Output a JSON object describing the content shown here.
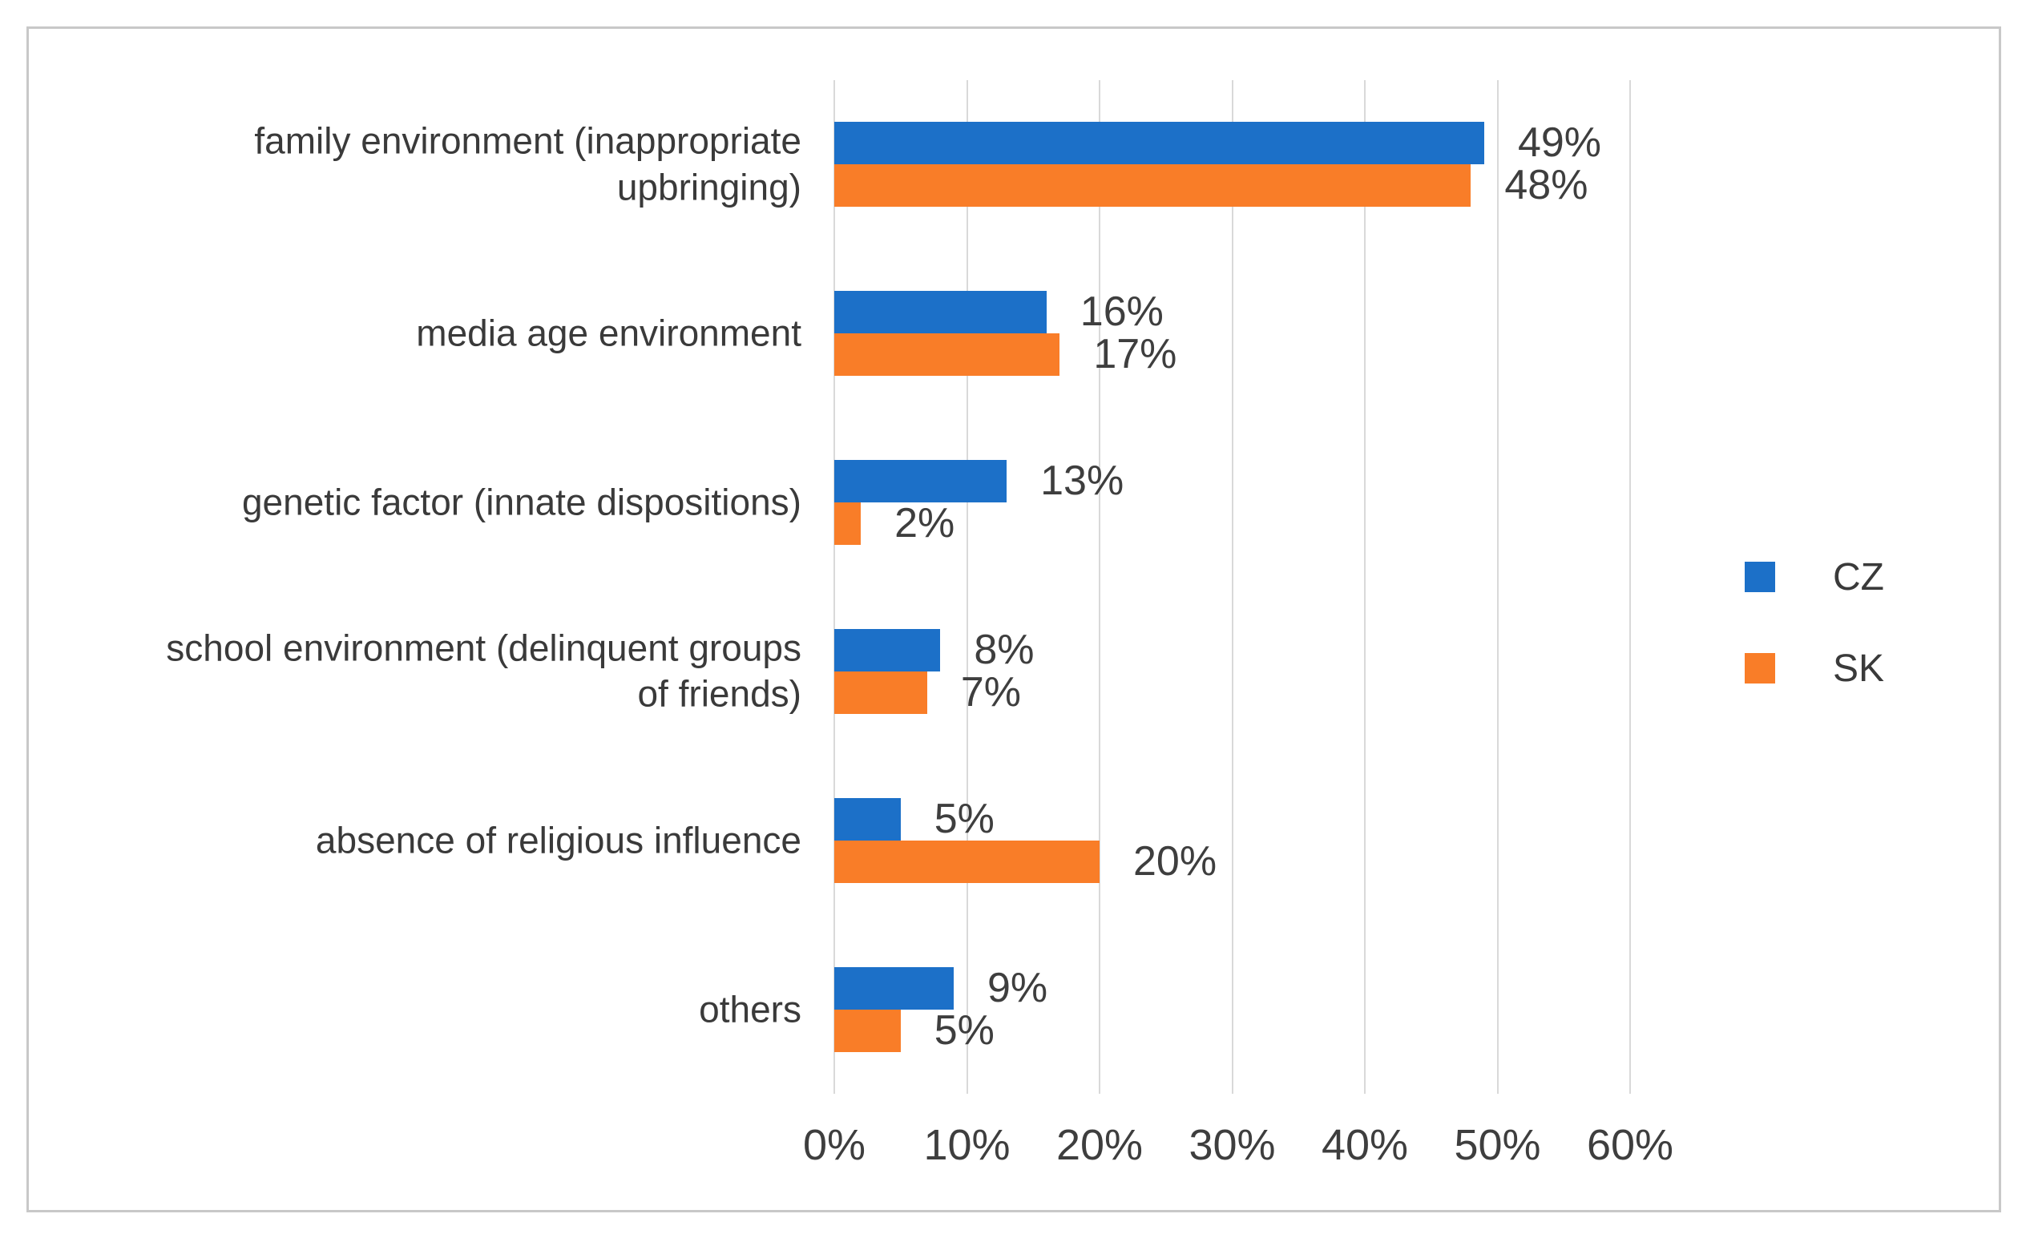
{
  "chart_data": {
    "type": "bar",
    "orientation": "horizontal",
    "title": "",
    "xlabel": "",
    "ylabel": "",
    "categories": [
      "family environment (inappropriate upbringing)",
      "media age environment",
      "genetic factor (innate dispositions)",
      "school environment (delinquent groups of friends)",
      "absence of religious influence",
      "others"
    ],
    "series": [
      {
        "name": "CZ",
        "color": "#1C70C8",
        "values": [
          49,
          16,
          13,
          8,
          5,
          9
        ]
      },
      {
        "name": "SK",
        "color": "#F97D28",
        "values": [
          48,
          17,
          2,
          7,
          20,
          5
        ]
      }
    ],
    "data_labels": [
      [
        "49%",
        "48%"
      ],
      [
        "16%",
        "17%"
      ],
      [
        "13%",
        "2%"
      ],
      [
        "8%",
        "7%"
      ],
      [
        "5%",
        "20%"
      ],
      [
        "9%",
        "5%"
      ]
    ],
    "x_ticks": [
      "0%",
      "10%",
      "20%",
      "30%",
      "40%",
      "50%",
      "60%"
    ],
    "xlim": [
      0,
      60
    ],
    "grid": true,
    "gridline_color": "#d9d9d9",
    "frame_border_color": "#c8c8c8",
    "legend_position": "right"
  },
  "legend": {
    "items": [
      {
        "label": "CZ",
        "color": "#1C70C8"
      },
      {
        "label": "SK",
        "color": "#F97D28"
      }
    ]
  }
}
